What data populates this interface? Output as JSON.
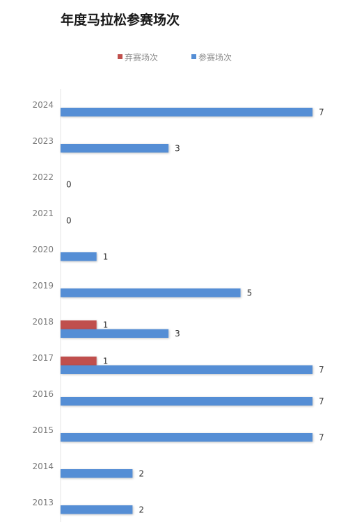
{
  "chart_data": {
    "type": "bar",
    "orientation": "horizontal",
    "title": "年度马拉松参赛场次",
    "categories": [
      "2024",
      "2023",
      "2022",
      "2021",
      "2020",
      "2019",
      "2018",
      "2017",
      "2016",
      "2015",
      "2014",
      "2013"
    ],
    "series": [
      {
        "name": "弃赛场次",
        "color": "#c0504d",
        "values": [
          0,
          0,
          0,
          0,
          0,
          0,
          1,
          1,
          0,
          0,
          0,
          0
        ]
      },
      {
        "name": "参赛场次",
        "color": "#558ed5",
        "values": [
          7,
          3,
          0,
          0,
          1,
          5,
          3,
          7,
          7,
          7,
          2,
          2
        ]
      }
    ],
    "xlim": [
      0,
      7
    ],
    "legend_position": "top",
    "grid": false
  }
}
